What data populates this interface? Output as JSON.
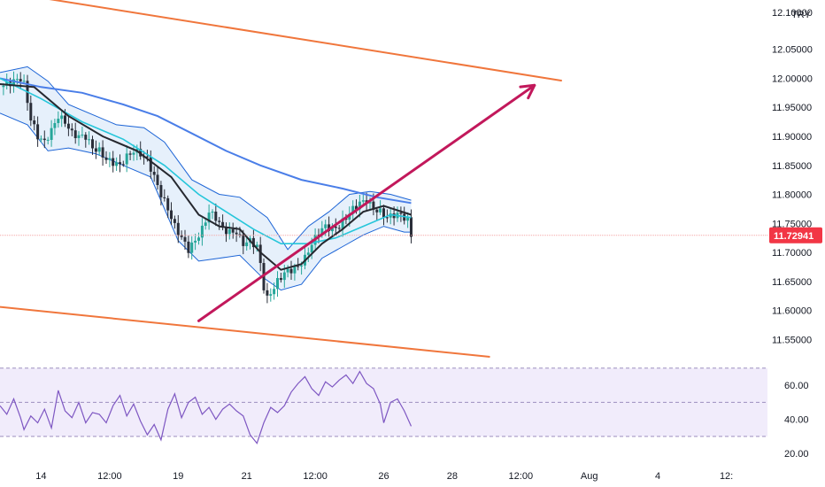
{
  "chart_data": [
    {
      "type": "candlestick",
      "currency": "TRY",
      "price_axis": {
        "ylim": [
          11.52,
          12.135
        ],
        "ticks": [
          "12.05000",
          "12.00000",
          "11.95000",
          "11.90000",
          "11.85000",
          "11.80000",
          "11.75000",
          "11.70000",
          "11.65000",
          "11.60000",
          "11.55000"
        ],
        "top_tick_partial": "12.10000"
      },
      "last_price": 11.72941,
      "last_price_label": "11.72941",
      "time_axis": {
        "labels": [
          {
            "text": "14",
            "t": 0.6
          },
          {
            "text": "12:00",
            "t": 1.6
          },
          {
            "text": "19",
            "t": 2.6
          },
          {
            "text": "21",
            "t": 3.6
          },
          {
            "text": "12:00",
            "t": 4.6
          },
          {
            "text": "26",
            "t": 5.6
          },
          {
            "text": "28",
            "t": 6.6
          },
          {
            "text": "12:00",
            "t": 7.6
          },
          {
            "text": "Aug",
            "t": 8.6
          },
          {
            "text": "4",
            "t": 9.6
          },
          {
            "text": "12:",
            "t": 10.6
          }
        ],
        "t_range": [
          0,
          11.2
        ]
      },
      "close_series": [
        [
          0.0,
          11.985
        ],
        [
          0.1,
          11.99
        ],
        [
          0.2,
          11.995
        ],
        [
          0.3,
          12.0
        ],
        [
          0.35,
          11.99
        ],
        [
          0.45,
          11.93
        ],
        [
          0.55,
          11.9
        ],
        [
          0.65,
          11.89
        ],
        [
          0.75,
          11.91
        ],
        [
          0.85,
          11.935
        ],
        [
          0.95,
          11.925
        ],
        [
          1.05,
          11.905
        ],
        [
          1.15,
          11.9
        ],
        [
          1.25,
          11.9
        ],
        [
          1.35,
          11.88
        ],
        [
          1.45,
          11.875
        ],
        [
          1.55,
          11.86
        ],
        [
          1.65,
          11.855
        ],
        [
          1.75,
          11.85
        ],
        [
          1.85,
          11.865
        ],
        [
          1.95,
          11.875
        ],
        [
          2.05,
          11.87
        ],
        [
          2.15,
          11.86
        ],
        [
          2.25,
          11.83
        ],
        [
          2.35,
          11.8
        ],
        [
          2.45,
          11.775
        ],
        [
          2.55,
          11.745
        ],
        [
          2.65,
          11.725
        ],
        [
          2.75,
          11.705
        ],
        [
          2.85,
          11.72
        ],
        [
          2.95,
          11.74
        ],
        [
          3.05,
          11.77
        ],
        [
          3.15,
          11.76
        ],
        [
          3.25,
          11.74
        ],
        [
          3.35,
          11.735
        ],
        [
          3.45,
          11.735
        ],
        [
          3.55,
          11.715
        ],
        [
          3.65,
          11.72
        ],
        [
          3.75,
          11.71
        ],
        [
          3.8,
          11.68
        ],
        [
          3.85,
          11.64
        ],
        [
          3.9,
          11.62
        ],
        [
          3.95,
          11.63
        ],
        [
          4.05,
          11.65
        ],
        [
          4.15,
          11.665
        ],
        [
          4.25,
          11.67
        ],
        [
          4.35,
          11.675
        ],
        [
          4.45,
          11.69
        ],
        [
          4.55,
          11.715
        ],
        [
          4.65,
          11.735
        ],
        [
          4.75,
          11.745
        ],
        [
          4.85,
          11.74
        ],
        [
          4.95,
          11.745
        ],
        [
          5.05,
          11.76
        ],
        [
          5.15,
          11.775
        ],
        [
          5.25,
          11.785
        ],
        [
          5.35,
          11.79
        ],
        [
          5.45,
          11.775
        ],
        [
          5.55,
          11.77
        ],
        [
          5.65,
          11.76
        ],
        [
          5.75,
          11.765
        ],
        [
          5.85,
          11.765
        ],
        [
          5.95,
          11.755
        ],
        [
          6.0,
          11.729
        ]
      ],
      "sma_series": [
        [
          0.0,
          11.99
        ],
        [
          0.5,
          11.985
        ],
        [
          1.0,
          11.935
        ],
        [
          1.5,
          11.9
        ],
        [
          2.0,
          11.875
        ],
        [
          2.5,
          11.83
        ],
        [
          2.9,
          11.765
        ],
        [
          3.2,
          11.745
        ],
        [
          3.5,
          11.74
        ],
        [
          3.8,
          11.7
        ],
        [
          4.1,
          11.67
        ],
        [
          4.4,
          11.68
        ],
        [
          4.7,
          11.715
        ],
        [
          5.0,
          11.74
        ],
        [
          5.3,
          11.77
        ],
        [
          5.6,
          11.78
        ],
        [
          6.0,
          11.765
        ]
      ],
      "ema_series": [
        [
          0.0,
          12.0
        ],
        [
          0.6,
          11.965
        ],
        [
          1.2,
          11.925
        ],
        [
          1.8,
          11.895
        ],
        [
          2.4,
          11.85
        ],
        [
          2.9,
          11.8
        ],
        [
          3.3,
          11.77
        ],
        [
          3.7,
          11.74
        ],
        [
          4.1,
          11.715
        ],
        [
          4.5,
          11.715
        ],
        [
          4.9,
          11.725
        ],
        [
          5.3,
          11.745
        ],
        [
          5.7,
          11.765
        ],
        [
          6.0,
          11.76
        ]
      ],
      "ma200_series": [
        [
          0.0,
          12.0
        ],
        [
          0.6,
          11.985
        ],
        [
          1.2,
          11.975
        ],
        [
          1.8,
          11.955
        ],
        [
          2.3,
          11.935
        ],
        [
          2.8,
          11.905
        ],
        [
          3.3,
          11.875
        ],
        [
          3.8,
          11.85
        ],
        [
          4.4,
          11.825
        ],
        [
          5.0,
          11.81
        ],
        [
          5.5,
          11.795
        ],
        [
          6.0,
          11.785
        ]
      ],
      "bb_upper_series": [
        [
          0.0,
          12.01
        ],
        [
          0.4,
          12.02
        ],
        [
          0.7,
          11.995
        ],
        [
          1.0,
          11.955
        ],
        [
          1.4,
          11.935
        ],
        [
          1.7,
          11.92
        ],
        [
          2.1,
          11.915
        ],
        [
          2.4,
          11.89
        ],
        [
          2.8,
          11.825
        ],
        [
          3.2,
          11.8
        ],
        [
          3.5,
          11.795
        ],
        [
          3.9,
          11.76
        ],
        [
          4.2,
          11.705
        ],
        [
          4.5,
          11.745
        ],
        [
          4.8,
          11.77
        ],
        [
          5.1,
          11.8
        ],
        [
          5.4,
          11.805
        ],
        [
          5.7,
          11.8
        ],
        [
          6.0,
          11.79
        ]
      ],
      "bb_lower_series": [
        [
          0.0,
          11.94
        ],
        [
          0.4,
          11.92
        ],
        [
          0.7,
          11.875
        ],
        [
          1.0,
          11.88
        ],
        [
          1.4,
          11.87
        ],
        [
          1.8,
          11.85
        ],
        [
          2.2,
          11.83
        ],
        [
          2.6,
          11.72
        ],
        [
          2.9,
          11.685
        ],
        [
          3.2,
          11.69
        ],
        [
          3.5,
          11.695
        ],
        [
          3.8,
          11.66
        ],
        [
          4.1,
          11.635
        ],
        [
          4.4,
          11.645
        ],
        [
          4.7,
          11.69
        ],
        [
          5.0,
          11.71
        ],
        [
          5.3,
          11.73
        ],
        [
          5.6,
          11.745
        ],
        [
          5.9,
          11.735
        ],
        [
          6.0,
          11.735
        ]
      ],
      "channel_upper_line": {
        "from": [
          0.0,
          12.15
        ],
        "to": [
          8.2,
          11.996
        ]
      },
      "channel_lower_line": {
        "from": [
          0.0,
          11.606
        ],
        "to": [
          7.15,
          11.52
        ]
      },
      "trend_arrow": {
        "from": [
          2.9,
          11.582
        ],
        "to": [
          7.8,
          11.988
        ]
      },
      "rsi": {
        "ticks": [
          "60.00",
          "40.00",
          "20.00"
        ],
        "upper_band": 70,
        "lower_band": 30,
        "mid": 50,
        "ylim": [
          17,
          73
        ],
        "series": [
          [
            0.0,
            48
          ],
          [
            0.1,
            43
          ],
          [
            0.2,
            52
          ],
          [
            0.3,
            41
          ],
          [
            0.35,
            34
          ],
          [
            0.45,
            42
          ],
          [
            0.55,
            38
          ],
          [
            0.65,
            46
          ],
          [
            0.75,
            35
          ],
          [
            0.85,
            57
          ],
          [
            0.95,
            45
          ],
          [
            1.05,
            41
          ],
          [
            1.15,
            50
          ],
          [
            1.25,
            38
          ],
          [
            1.35,
            44
          ],
          [
            1.45,
            43
          ],
          [
            1.55,
            38
          ],
          [
            1.65,
            48
          ],
          [
            1.75,
            54
          ],
          [
            1.85,
            42
          ],
          [
            1.95,
            49
          ],
          [
            2.05,
            39
          ],
          [
            2.15,
            31
          ],
          [
            2.25,
            37
          ],
          [
            2.35,
            28
          ],
          [
            2.45,
            46
          ],
          [
            2.55,
            55
          ],
          [
            2.65,
            41
          ],
          [
            2.75,
            50
          ],
          [
            2.85,
            53
          ],
          [
            2.95,
            43
          ],
          [
            3.05,
            47
          ],
          [
            3.15,
            40
          ],
          [
            3.25,
            46
          ],
          [
            3.35,
            49
          ],
          [
            3.45,
            45
          ],
          [
            3.55,
            42
          ],
          [
            3.65,
            31
          ],
          [
            3.75,
            26
          ],
          [
            3.85,
            38
          ],
          [
            3.95,
            47
          ],
          [
            4.05,
            44
          ],
          [
            4.15,
            48
          ],
          [
            4.25,
            56
          ],
          [
            4.35,
            61
          ],
          [
            4.45,
            65
          ],
          [
            4.55,
            58
          ],
          [
            4.65,
            54
          ],
          [
            4.75,
            62
          ],
          [
            4.85,
            59
          ],
          [
            4.95,
            63
          ],
          [
            5.05,
            66
          ],
          [
            5.15,
            61
          ],
          [
            5.25,
            68
          ],
          [
            5.35,
            61
          ],
          [
            5.45,
            58
          ],
          [
            5.55,
            49
          ],
          [
            5.6,
            38
          ],
          [
            5.7,
            50
          ],
          [
            5.8,
            52
          ],
          [
            5.9,
            45
          ],
          [
            6.0,
            36
          ]
        ]
      }
    }
  ],
  "colors": {
    "candle_up": "#26a69a",
    "candle_down": "#2a2e39",
    "sma": "#26282f",
    "ema": "#26c6da",
    "ma200": "#4a7ee8",
    "bollinger": "#1c64d6",
    "bollinger_fill": "#e3eefb",
    "channel": "#f0763c",
    "trend_arrow": "#c2185b",
    "rsi_line": "#7e57c2",
    "rsi_band": "#f1ecfb",
    "price_badge": "#f23645",
    "price_line": "#f6a5a5"
  }
}
